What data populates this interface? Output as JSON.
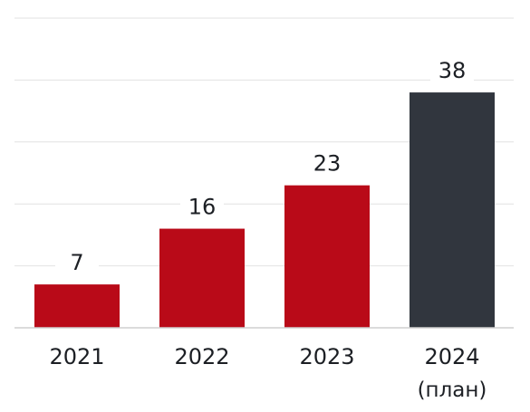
{
  "chart_data": {
    "type": "bar",
    "categories": [
      "2021",
      "2022",
      "2023",
      "2024"
    ],
    "category_notes": [
      "",
      "",
      "",
      "(план)"
    ],
    "values": [
      7,
      16,
      23,
      38
    ],
    "data_labels": [
      "7",
      "16",
      "23",
      "38"
    ],
    "ylim": [
      0,
      50
    ],
    "grid": true,
    "bar_colors": [
      "#b90a18",
      "#b90a18",
      "#b90a18",
      "#31363e"
    ],
    "title": "",
    "xlabel": "",
    "ylabel": ""
  }
}
